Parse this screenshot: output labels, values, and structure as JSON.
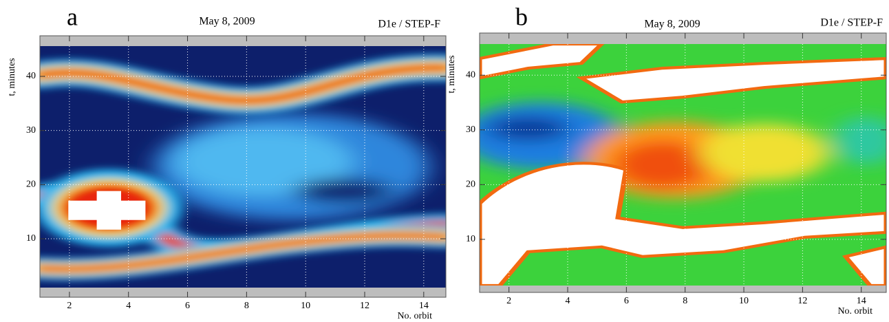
{
  "chart_data": [
    {
      "type": "contour",
      "panel": "a",
      "title": "May 8, 2009",
      "subtitle": "D1e / STEP-F",
      "xlabel": "No. orbit",
      "ylabel": "t, minutes",
      "xlim": [
        1,
        14.75
      ],
      "xticks": [
        2,
        4,
        6,
        8,
        10,
        12,
        14
      ],
      "ylim": [
        -0.8,
        47.5
      ],
      "yticks": [
        10,
        20,
        30,
        40
      ],
      "grid": true
    },
    {
      "type": "contour",
      "panel": "b",
      "title": "May 8, 2009",
      "subtitle": "D1e / STEP-F",
      "xlabel": "No. orbit",
      "ylabel": "t, minutes",
      "xlim": [
        1,
        14.85
      ],
      "xticks": [
        2,
        4,
        6,
        8,
        10,
        12,
        14
      ],
      "ylim": [
        0.3,
        47.7
      ],
      "yticks": [
        10,
        20,
        30,
        40
      ],
      "grid": true
    }
  ]
}
